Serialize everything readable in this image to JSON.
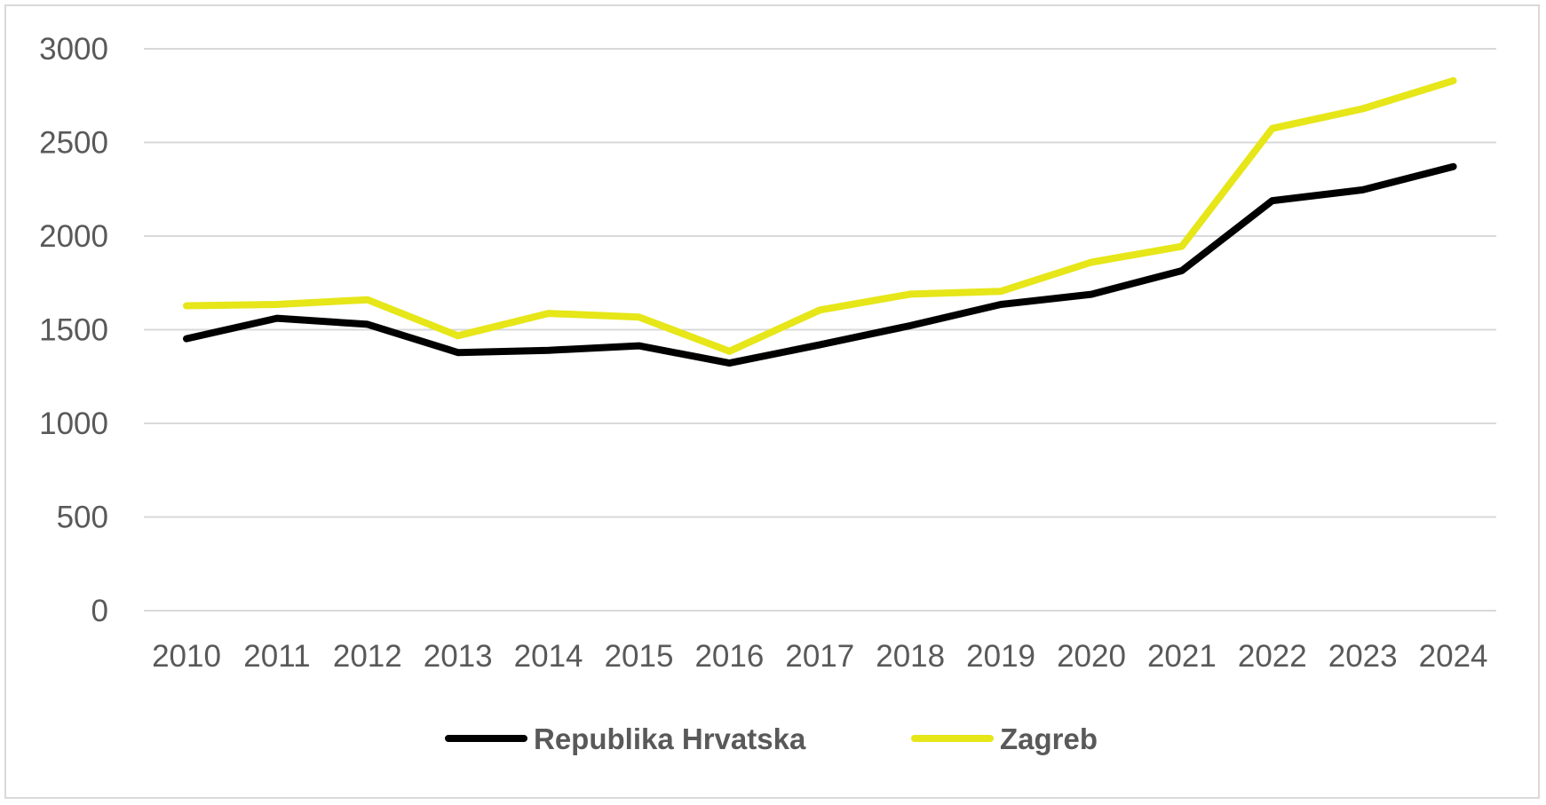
{
  "chart_data": {
    "type": "line",
    "title": "",
    "xlabel": "",
    "ylabel": "",
    "categories": [
      "2010",
      "2011",
      "2012",
      "2013",
      "2014",
      "2015",
      "2016",
      "2017",
      "2018",
      "2019",
      "2020",
      "2021",
      "2022",
      "2023",
      "2024"
    ],
    "series": [
      {
        "name": "Republika Hrvatska",
        "color": "#000000",
        "values": [
          1452,
          1561,
          1529,
          1378,
          1390,
          1414,
          1322,
          1420,
          1522,
          1635,
          1689,
          1815,
          2189,
          2247,
          2371
        ]
      },
      {
        "name": "Zagreb",
        "color": "#e6e619",
        "values": [
          1628,
          1635,
          1660,
          1468,
          1587,
          1568,
          1385,
          1605,
          1690,
          1705,
          1860,
          1945,
          2575,
          2680,
          2830
        ]
      }
    ],
    "ylim": [
      0,
      3000
    ],
    "yticks": [
      0,
      500,
      1000,
      1500,
      2000,
      2500,
      3000
    ],
    "grid": true,
    "legend": "bottom"
  }
}
